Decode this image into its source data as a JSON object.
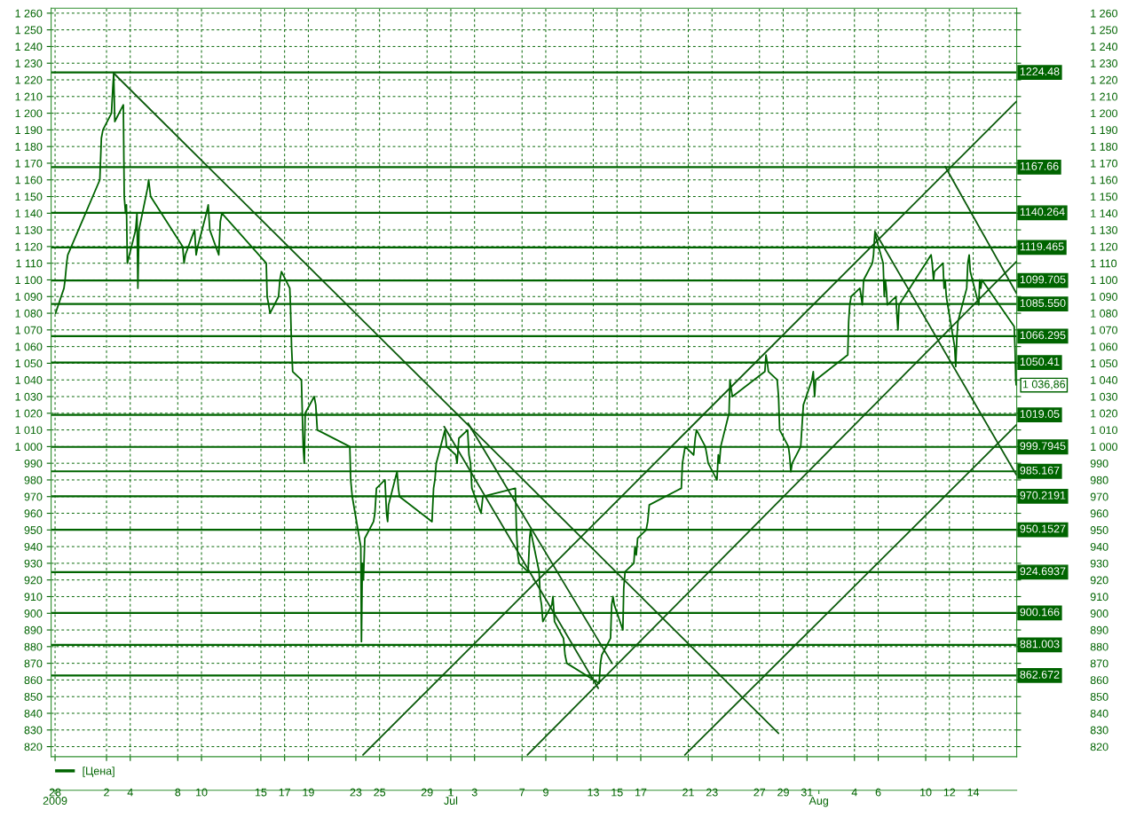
{
  "chart_data": {
    "type": "line",
    "xlim": [
      "2009-05-28T08:00",
      "2009-08-17T16:00"
    ],
    "ylim": [
      814,
      1263
    ],
    "y2lim": [
      814,
      1263
    ],
    "x2lim": [
      "2009-05-28T08:00",
      "2009-08-17T16:00"
    ],
    "xticks": [
      {
        "value": "2009-05-28T16:00",
        "label": "28"
      },
      {
        "value": "2009-06-02",
        "label": "2"
      },
      {
        "value": "2009-06-04",
        "label": "4"
      },
      {
        "value": "2009-06-08",
        "label": "8"
      },
      {
        "value": "2009-06-10",
        "label": "10"
      },
      {
        "value": "2009-06-15",
        "label": "15"
      },
      {
        "value": "2009-06-17",
        "label": "17"
      },
      {
        "value": "2009-06-19",
        "label": "19"
      },
      {
        "value": "2009-06-23",
        "label": "23"
      },
      {
        "value": "2009-06-25",
        "label": "25"
      },
      {
        "value": "2009-06-29",
        "label": "29"
      },
      {
        "value": "2009-07-01",
        "label": "1"
      },
      {
        "value": "2009-07-03",
        "label": "3"
      },
      {
        "value": "2009-07-07",
        "label": "7"
      },
      {
        "value": "2009-07-09",
        "label": "9"
      },
      {
        "value": "2009-07-13",
        "label": "13"
      },
      {
        "value": "2009-07-15",
        "label": "15"
      },
      {
        "value": "2009-07-17",
        "label": "17"
      },
      {
        "value": "2009-07-21",
        "label": "21"
      },
      {
        "value": "2009-07-23",
        "label": "23"
      },
      {
        "value": "2009-07-27",
        "label": "27"
      },
      {
        "value": "2009-07-29",
        "label": "29"
      },
      {
        "value": "2009-07-31",
        "label": "31"
      },
      {
        "value": "2009-08-04",
        "label": "4"
      },
      {
        "value": "2009-08-06",
        "label": "6"
      },
      {
        "value": "2009-08-10",
        "label": "10"
      },
      {
        "value": "2009-08-12",
        "label": "12"
      },
      {
        "value": "2009-08-14",
        "label": "14"
      }
    ],
    "x2ticks": [
      {
        "value": "2009-05-28T16:00",
        "label": "2009"
      },
      {
        "value": "2009-07-01",
        "label": "Jul"
      },
      {
        "value": "2009-08-01",
        "label": "Aug"
      }
    ],
    "yticks": [
      820,
      830,
      840,
      850,
      860,
      870,
      880,
      890,
      900,
      910,
      920,
      930,
      940,
      950,
      960,
      970,
      980,
      990,
      {
        "value": 1000,
        "label": "1 000"
      },
      {
        "value": 1010,
        "label": "1 010"
      },
      {
        "value": 1020,
        "label": "1 020"
      },
      {
        "value": 1030,
        "label": "1 030"
      },
      {
        "value": 1040,
        "label": "1 040"
      },
      {
        "value": 1050,
        "label": "1 050"
      },
      {
        "value": 1060,
        "label": "1 060"
      },
      {
        "value": 1070,
        "label": "1 070"
      },
      {
        "value": 1080,
        "label": "1 080"
      },
      {
        "value": 1090,
        "label": "1 090"
      },
      {
        "value": 1100,
        "label": "1 100"
      },
      {
        "value": 1110,
        "label": "1 110"
      },
      {
        "value": 1120,
        "label": "1 120"
      },
      {
        "value": 1130,
        "label": "1 130"
      },
      {
        "value": 1140,
        "label": "1 140"
      },
      {
        "value": 1150,
        "label": "1 150"
      },
      {
        "value": 1160,
        "label": "1 160"
      },
      {
        "value": 1170,
        "label": "1 170"
      },
      {
        "value": 1180,
        "label": "1 180"
      },
      {
        "value": 1190,
        "label": "1 190"
      },
      {
        "value": 1200,
        "label": "1 200"
      },
      {
        "value": 1210,
        "label": "1 210"
      },
      {
        "value": 1220,
        "label": "1 220"
      },
      {
        "value": 1230,
        "label": "1 230"
      },
      {
        "value": 1240,
        "label": "1 240"
      },
      {
        "value": 1250,
        "label": "1 250"
      },
      {
        "value": 1260,
        "label": "1 260"
      }
    ],
    "y2ticks": [
      820,
      830,
      840,
      850,
      860,
      870,
      880,
      890,
      900,
      910,
      920,
      930,
      940,
      950,
      960,
      970,
      980,
      990,
      {
        "value": 1000,
        "label": "1 000"
      },
      {
        "value": 1010,
        "label": "1 010"
      },
      {
        "value": 1020,
        "label": "1 020"
      },
      {
        "value": 1030,
        "label": "1 030"
      },
      {
        "value": 1040,
        "label": "1 040"
      },
      {
        "value": 1050,
        "label": "1 050"
      },
      {
        "value": 1060,
        "label": "1 060"
      },
      {
        "value": 1070,
        "label": "1 070"
      },
      {
        "value": 1080,
        "label": "1 080"
      },
      {
        "value": 1090,
        "label": "1 090"
      },
      {
        "value": 1100,
        "label": "1 100"
      },
      {
        "value": 1110,
        "label": "1 110"
      },
      {
        "value": 1120,
        "label": "1 120"
      },
      {
        "value": 1130,
        "label": "1 130"
      },
      {
        "value": 1140,
        "label": "1 140"
      },
      {
        "value": 1150,
        "label": "1 150"
      },
      {
        "value": 1160,
        "label": "1 160"
      },
      {
        "value": 1170,
        "label": "1 170"
      },
      {
        "value": 1180,
        "label": "1 180"
      },
      {
        "value": 1190,
        "label": "1 190"
      },
      {
        "value": 1200,
        "label": "1 200"
      },
      {
        "value": 1210,
        "label": "1 210"
      },
      {
        "value": 1220,
        "label": "1 220"
      },
      {
        "value": 1230,
        "label": "1 230"
      },
      {
        "value": 1240,
        "label": "1 240"
      },
      {
        "value": 1250,
        "label": "1 250"
      },
      {
        "value": 1260,
        "label": "1 260"
      }
    ],
    "grid": true,
    "legend": "bottom left",
    "line_style": "solid",
    "series": [
      {
        "name": "[Цена]",
        "color": "#006400",
        "x": [
          "2009-05-28T17:00",
          "2009-05-29T10:00",
          "2009-05-29T12:15",
          "2009-05-29T15:24",
          "2009-05-29T17:39",
          "2009-06-01T10:27",
          "2009-06-01T13:36",
          "2009-06-01T16:45",
          "2009-06-02T10:00",
          "2009-06-02T12:42",
          "2009-06-02T14:30",
          "2009-06-02T16:45",
          "2009-06-03T10:00",
          "2009-06-03T11:48",
          "2009-06-03T14:30",
          "2009-06-03T16:18",
          "2009-06-03T18:06",
          "2009-06-04T10:54",
          "2009-06-04T13:36",
          "2009-06-04T15:24",
          "2009-06-04T17:39",
          "2009-06-05T10:54",
          "2009-06-05T13:09",
          "2009-06-05T17:12",
          "2009-06-08T10:00",
          "2009-06-08T12:42",
          "2009-06-08T15:24",
          "2009-06-09T10:00",
          "2009-06-09T13:09",
          "2009-06-09T16:18",
          "2009-06-10T10:00",
          "2009-06-10T13:36",
          "2009-06-10T16:45",
          "2009-06-11T10:54",
          "2009-06-11T14:03",
          "2009-06-11T17:12",
          "2009-06-15T10:54",
          "2009-06-15T12:42",
          "2009-06-15T15:51",
          "2009-06-15T18:33",
          "2009-06-16T11:48",
          "2009-06-16T14:30",
          "2009-06-16T17:39",
          "2009-06-17T10:27",
          "2009-06-17T11:48",
          "2009-06-17T14:03",
          "2009-06-17T16:18",
          "2009-06-18T10:00",
          "2009-06-18T13:36",
          "2009-06-18T15:51",
          "2009-06-18T17:39",
          "2009-06-19T11:48",
          "2009-06-19T14:57",
          "2009-06-19T18:06",
          "2009-06-22T11:48",
          "2009-06-22T13:36",
          "2009-06-22T16:45",
          "2009-06-23T10:00",
          "2009-06-23T11:21",
          "2009-06-23T13:09",
          "2009-06-23T15:24",
          "2009-06-23T18:06",
          "2009-06-24T11:48",
          "2009-06-24T14:30",
          "2009-06-24T17:39",
          "2009-06-25T10:54",
          "2009-06-25T14:03",
          "2009-06-25T16:18",
          "2009-06-25T18:06",
          "2009-06-26T11:21",
          "2009-06-26T14:03",
          "2009-06-26T16:18",
          "2009-06-29T10:00",
          "2009-06-29T13:09",
          "2009-06-29T15:51",
          "2009-06-29T18:33",
          "2009-06-30T12:15",
          "2009-06-30T15:24",
          "2009-07-01T10:00",
          "2009-07-01T12:42",
          "2009-07-01T16:18",
          "2009-07-02T10:00",
          "2009-07-02T12:42",
          "2009-07-02T15:51",
          "2009-07-02T18:33",
          "2009-07-03T13:09",
          "2009-07-03T16:45",
          "2009-07-06T10:27",
          "2009-07-06T12:42",
          "2009-07-06T15:24",
          "2009-07-06T18:06",
          "2009-07-07T12:15",
          "2009-07-07T15:24",
          "2009-07-07T17:12",
          "2009-07-08T10:27",
          "2009-07-08T12:42",
          "2009-07-08T15:24",
          "2009-07-08T18:06",
          "2009-07-09T12:15",
          "2009-07-09T14:30",
          "2009-07-09T17:39",
          "2009-07-10T11:48",
          "2009-07-10T14:57",
          "2009-07-10T18:33",
          "2009-07-13T11:48",
          "2009-07-13T14:30",
          "2009-07-13T17:12",
          "2009-07-14T10:54",
          "2009-07-14T13:09",
          "2009-07-14T15:51",
          "2009-07-14T18:33",
          "2009-07-15T11:48",
          "2009-07-15T13:36",
          "2009-07-15T16:18",
          "2009-07-16T10:00",
          "2009-07-16T12:15",
          "2009-07-16T14:57",
          "2009-07-16T17:39",
          "2009-07-17T10:54",
          "2009-07-17T14:03",
          "2009-07-17T17:12",
          "2009-07-20T10:00",
          "2009-07-20T12:15",
          "2009-07-20T14:57",
          "2009-07-20T17:39",
          "2009-07-21T10:54",
          "2009-07-21T14:03",
          "2009-07-21T16:45",
          "2009-07-22T10:27",
          "2009-07-22T13:36",
          "2009-07-22T16:18",
          "2009-07-23T10:00",
          "2009-07-23T12:42",
          "2009-07-23T14:57",
          "2009-07-23T17:39",
          "2009-07-24T10:27",
          "2009-07-24T12:15",
          "2009-07-24T14:30",
          "2009-07-24T17:12",
          "2009-07-27T10:54",
          "2009-07-27T13:09",
          "2009-07-27T15:51",
          "2009-07-27T18:06",
          "2009-07-28T11:48",
          "2009-07-28T14:30",
          "2009-07-28T16:45",
          "2009-07-29T10:27",
          "2009-07-29T12:42",
          "2009-07-29T15:24",
          "2009-07-29T18:06",
          "2009-07-30T11:21",
          "2009-07-30T14:30",
          "2009-07-30T16:45",
          "2009-07-31T10:00",
          "2009-07-31T12:42",
          "2009-07-31T15:24",
          "2009-07-31T17:39",
          "2009-08-03T10:27",
          "2009-08-03T12:15",
          "2009-08-03T14:30",
          "2009-08-03T17:12",
          "2009-08-04T10:54",
          "2009-08-04T13:36",
          "2009-08-04T15:51",
          "2009-08-04T18:33",
          "2009-08-05T12:15",
          "2009-08-05T14:30",
          "2009-08-05T17:12",
          "2009-08-06T10:00",
          "2009-08-06T12:15",
          "2009-08-06T14:30",
          "2009-08-06T16:18",
          "2009-08-06T18:33",
          "2009-08-07T11:48",
          "2009-08-07T13:36",
          "2009-08-07T15:51",
          "2009-08-07T18:06",
          "2009-08-10T10:54",
          "2009-08-10T13:09",
          "2009-08-10T15:51",
          "2009-08-10T17:39",
          "2009-08-11T10:54",
          "2009-08-11T13:09",
          "2009-08-11T15:24",
          "2009-08-11T17:39",
          "2009-08-12T10:27",
          "2009-08-12T12:42",
          "2009-08-12T14:57",
          "2009-08-12T17:12",
          "2009-08-13T10:54",
          "2009-08-13T13:09",
          "2009-08-13T15:51",
          "2009-08-13T18:06",
          "2009-08-14T11:21",
          "2009-08-14T13:09",
          "2009-08-14T15:24",
          "2009-08-14T17:39",
          "2009-08-17T10:54",
          "2009-08-17T12:42",
          "2009-08-17T14:03",
          "2009-08-17T14:57"
        ],
        "values": [
          1080,
          1095,
          1100,
          1110,
          1115,
          1160,
          1185,
          1190,
          1200,
          1215,
          1224,
          1195,
          1205,
          1150,
          1140,
          1145,
          1110,
          1130,
          1140,
          1095,
          1130,
          1155,
          1160,
          1150,
          1120,
          1110,
          1115,
          1130,
          1115,
          1120,
          1140,
          1145,
          1130,
          1115,
          1135,
          1140,
          1110,
          1090,
          1085,
          1080,
          1090,
          1100,
          1105,
          1095,
          1085,
          1060,
          1045,
          1040,
          1000,
          990,
          1020,
          1030,
          1025,
          1010,
          1000,
          980,
          970,
          940,
          883,
          930,
          920,
          945,
          955,
          960,
          975,
          980,
          960,
          955,
          965,
          985,
          975,
          970,
          955,
          975,
          980,
          990,
          1010,
          1000,
          995,
          990,
          1005,
          1010,
          995,
          990,
          975,
          960,
          970,
          975,
          950,
          935,
          930,
          925,
          945,
          950,
          925,
          910,
          905,
          895,
          905,
          910,
          895,
          885,
          875,
          870,
          858,
          870,
          875,
          885,
          905,
          910,
          905,
          890,
          915,
          925,
          930,
          940,
          935,
          945,
          950,
          955,
          965,
          975,
          990,
          995,
          1000,
          995,
          1005,
          1010,
          1000,
          995,
          990,
          980,
          995,
          990,
          1000,
          1020,
          1040,
          1035,
          1030,
          1045,
          1055,
          1050,
          1045,
          1040,
          1030,
          1010,
          1000,
          995,
          985,
          990,
          1000,
          1015,
          1025,
          1040,
          1045,
          1030,
          1040,
          1055,
          1075,
          1085,
          1090,
          1095,
          1090,
          1085,
          1100,
          1110,
          1115,
          1128,
          1110,
          1090,
          1100,
          1095,
          1085,
          1090,
          1080,
          1070,
          1085,
          1115,
          1110,
          1100,
          1105,
          1110,
          1095,
          1100,
          1090,
          1060,
          1048,
          1065,
          1075,
          1095,
          1110,
          1115,
          1105,
          1085,
          1100,
          1095,
          1100,
          1072,
          1058,
          1040,
          1037
        ]
      },
      {
        "color": "#0b5a0b",
        "x": [
          "2009-06-02T14:30",
          "2009-07-28T14:30"
        ],
        "values": [
          1224,
          828
        ]
      },
      {
        "color": "#0b5a0b",
        "x": [
          "2009-06-30T10:27",
          "2009-07-13T10:00"
        ],
        "values": [
          1012,
          855
        ]
      },
      {
        "color": "#0b5a0b",
        "x": [
          "2009-07-02T10:54",
          "2009-07-14T14:03"
        ],
        "values": [
          1014,
          870
        ]
      },
      {
        "color": "#0b5a0b",
        "x": [
          "2009-06-23T14:30",
          "2009-08-17T15:24"
        ],
        "values": [
          815,
          1207
        ]
      },
      {
        "color": "#0b5a0b",
        "x": [
          "2009-07-07T10:54",
          "2009-08-17T15:24"
        ],
        "values": [
          815,
          1111
        ]
      },
      {
        "color": "#0b5a0b",
        "x": [
          "2009-07-20T17:12",
          "2009-08-17T15:24"
        ],
        "values": [
          815,
          1013
        ]
      },
      {
        "color": "#0b5a0b",
        "x": [
          "2009-08-05T17:12",
          "2009-08-17T15:24"
        ],
        "values": [
          1129,
          983
        ]
      },
      {
        "color": "#0b5a0b",
        "x": [
          "2009-08-11T15:24",
          "2009-08-17T15:24"
        ],
        "values": [
          1168,
          1092
        ]
      }
    ],
    "ref_lines": [
      {
        "axis": "y",
        "value": 1224.48,
        "label": "1224.48",
        "color": "#006400"
      },
      {
        "axis": "y",
        "value": 1167.66,
        "label": "1167.66",
        "color": "#006400"
      },
      {
        "axis": "y",
        "value": 1140.264,
        "label": "1140.264",
        "color": "#006400"
      },
      {
        "axis": "y",
        "value": 1119.465,
        "label": "1119.465",
        "color": "#006400"
      },
      {
        "axis": "y",
        "value": 1099.705,
        "label": "1099.705",
        "color": "#006400"
      },
      {
        "axis": "y",
        "value": 1085.55,
        "label": "1085.550",
        "color": "#006400"
      },
      {
        "axis": "y",
        "value": 1066.295,
        "label": "1066.295",
        "color": "#006400"
      },
      {
        "axis": "y",
        "value": 1050.41,
        "label": "1050.41",
        "color": "#006400"
      },
      {
        "axis": "y",
        "value": 1019.05,
        "label": "1019.05",
        "color": "#006400"
      },
      {
        "axis": "y",
        "value": 999.7945,
        "label": "999.7945",
        "color": "#006400"
      },
      {
        "axis": "y",
        "value": 985.167,
        "label": "985.167",
        "color": "#006400"
      },
      {
        "axis": "y",
        "value": 970.2191,
        "label": "970.2191",
        "color": "#006400"
      },
      {
        "axis": "y",
        "value": 950.1527,
        "label": "950.1527",
        "color": "#006400"
      },
      {
        "axis": "y",
        "value": 924.6937,
        "label": "924.6937",
        "color": "#006400"
      },
      {
        "axis": "y",
        "value": 900.166,
        "label": "900.166",
        "color": "#006400"
      },
      {
        "axis": "y",
        "value": 881.003,
        "label": "881.003",
        "color": "#006400"
      },
      {
        "axis": "y",
        "value": 862.672,
        "label": "862.672",
        "color": "#006400"
      }
    ],
    "annotations": [
      {
        "text": "1 036,86",
        "x": "2009-08-17T14:57",
        "y": 1036.86
      }
    ]
  }
}
